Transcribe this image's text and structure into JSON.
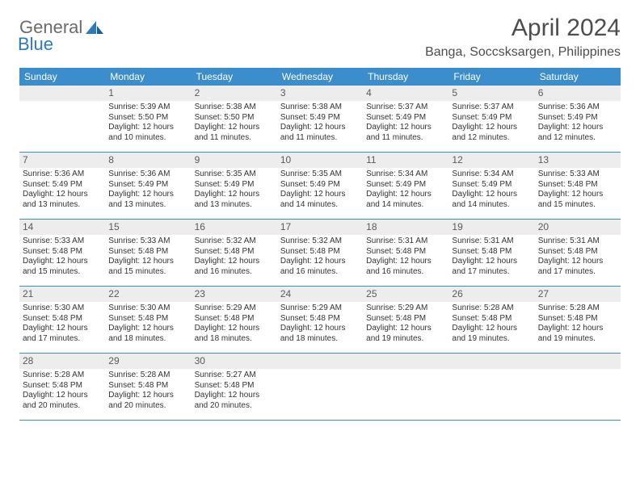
{
  "brand": {
    "part1": "General",
    "part2": "Blue"
  },
  "title": "April 2024",
  "location": "Banga, Soccsksargen, Philippines",
  "colors": {
    "header_bg": "#3c8dcc",
    "header_text": "#ffffff",
    "daynum_bg": "#ededed",
    "daynum_text": "#5a5a5a",
    "body_text": "#333333",
    "rule": "#3c8dcc",
    "brand_gray": "#6b6b6b",
    "brand_blue": "#2b7bbf"
  },
  "day_labels": [
    "Sunday",
    "Monday",
    "Tuesday",
    "Wednesday",
    "Thursday",
    "Friday",
    "Saturday"
  ],
  "weeks": [
    [
      {
        "n": "",
        "sr": "",
        "ss": "",
        "dl": ""
      },
      {
        "n": "1",
        "sr": "Sunrise: 5:39 AM",
        "ss": "Sunset: 5:50 PM",
        "dl": "Daylight: 12 hours and 10 minutes."
      },
      {
        "n": "2",
        "sr": "Sunrise: 5:38 AM",
        "ss": "Sunset: 5:50 PM",
        "dl": "Daylight: 12 hours and 11 minutes."
      },
      {
        "n": "3",
        "sr": "Sunrise: 5:38 AM",
        "ss": "Sunset: 5:49 PM",
        "dl": "Daylight: 12 hours and 11 minutes."
      },
      {
        "n": "4",
        "sr": "Sunrise: 5:37 AM",
        "ss": "Sunset: 5:49 PM",
        "dl": "Daylight: 12 hours and 11 minutes."
      },
      {
        "n": "5",
        "sr": "Sunrise: 5:37 AM",
        "ss": "Sunset: 5:49 PM",
        "dl": "Daylight: 12 hours and 12 minutes."
      },
      {
        "n": "6",
        "sr": "Sunrise: 5:36 AM",
        "ss": "Sunset: 5:49 PM",
        "dl": "Daylight: 12 hours and 12 minutes."
      }
    ],
    [
      {
        "n": "7",
        "sr": "Sunrise: 5:36 AM",
        "ss": "Sunset: 5:49 PM",
        "dl": "Daylight: 12 hours and 13 minutes."
      },
      {
        "n": "8",
        "sr": "Sunrise: 5:36 AM",
        "ss": "Sunset: 5:49 PM",
        "dl": "Daylight: 12 hours and 13 minutes."
      },
      {
        "n": "9",
        "sr": "Sunrise: 5:35 AM",
        "ss": "Sunset: 5:49 PM",
        "dl": "Daylight: 12 hours and 13 minutes."
      },
      {
        "n": "10",
        "sr": "Sunrise: 5:35 AM",
        "ss": "Sunset: 5:49 PM",
        "dl": "Daylight: 12 hours and 14 minutes."
      },
      {
        "n": "11",
        "sr": "Sunrise: 5:34 AM",
        "ss": "Sunset: 5:49 PM",
        "dl": "Daylight: 12 hours and 14 minutes."
      },
      {
        "n": "12",
        "sr": "Sunrise: 5:34 AM",
        "ss": "Sunset: 5:49 PM",
        "dl": "Daylight: 12 hours and 14 minutes."
      },
      {
        "n": "13",
        "sr": "Sunrise: 5:33 AM",
        "ss": "Sunset: 5:48 PM",
        "dl": "Daylight: 12 hours and 15 minutes."
      }
    ],
    [
      {
        "n": "14",
        "sr": "Sunrise: 5:33 AM",
        "ss": "Sunset: 5:48 PM",
        "dl": "Daylight: 12 hours and 15 minutes."
      },
      {
        "n": "15",
        "sr": "Sunrise: 5:33 AM",
        "ss": "Sunset: 5:48 PM",
        "dl": "Daylight: 12 hours and 15 minutes."
      },
      {
        "n": "16",
        "sr": "Sunrise: 5:32 AM",
        "ss": "Sunset: 5:48 PM",
        "dl": "Daylight: 12 hours and 16 minutes."
      },
      {
        "n": "17",
        "sr": "Sunrise: 5:32 AM",
        "ss": "Sunset: 5:48 PM",
        "dl": "Daylight: 12 hours and 16 minutes."
      },
      {
        "n": "18",
        "sr": "Sunrise: 5:31 AM",
        "ss": "Sunset: 5:48 PM",
        "dl": "Daylight: 12 hours and 16 minutes."
      },
      {
        "n": "19",
        "sr": "Sunrise: 5:31 AM",
        "ss": "Sunset: 5:48 PM",
        "dl": "Daylight: 12 hours and 17 minutes."
      },
      {
        "n": "20",
        "sr": "Sunrise: 5:31 AM",
        "ss": "Sunset: 5:48 PM",
        "dl": "Daylight: 12 hours and 17 minutes."
      }
    ],
    [
      {
        "n": "21",
        "sr": "Sunrise: 5:30 AM",
        "ss": "Sunset: 5:48 PM",
        "dl": "Daylight: 12 hours and 17 minutes."
      },
      {
        "n": "22",
        "sr": "Sunrise: 5:30 AM",
        "ss": "Sunset: 5:48 PM",
        "dl": "Daylight: 12 hours and 18 minutes."
      },
      {
        "n": "23",
        "sr": "Sunrise: 5:29 AM",
        "ss": "Sunset: 5:48 PM",
        "dl": "Daylight: 12 hours and 18 minutes."
      },
      {
        "n": "24",
        "sr": "Sunrise: 5:29 AM",
        "ss": "Sunset: 5:48 PM",
        "dl": "Daylight: 12 hours and 18 minutes."
      },
      {
        "n": "25",
        "sr": "Sunrise: 5:29 AM",
        "ss": "Sunset: 5:48 PM",
        "dl": "Daylight: 12 hours and 19 minutes."
      },
      {
        "n": "26",
        "sr": "Sunrise: 5:28 AM",
        "ss": "Sunset: 5:48 PM",
        "dl": "Daylight: 12 hours and 19 minutes."
      },
      {
        "n": "27",
        "sr": "Sunrise: 5:28 AM",
        "ss": "Sunset: 5:48 PM",
        "dl": "Daylight: 12 hours and 19 minutes."
      }
    ],
    [
      {
        "n": "28",
        "sr": "Sunrise: 5:28 AM",
        "ss": "Sunset: 5:48 PM",
        "dl": "Daylight: 12 hours and 20 minutes."
      },
      {
        "n": "29",
        "sr": "Sunrise: 5:28 AM",
        "ss": "Sunset: 5:48 PM",
        "dl": "Daylight: 12 hours and 20 minutes."
      },
      {
        "n": "30",
        "sr": "Sunrise: 5:27 AM",
        "ss": "Sunset: 5:48 PM",
        "dl": "Daylight: 12 hours and 20 minutes."
      },
      {
        "n": "",
        "sr": "",
        "ss": "",
        "dl": ""
      },
      {
        "n": "",
        "sr": "",
        "ss": "",
        "dl": ""
      },
      {
        "n": "",
        "sr": "",
        "ss": "",
        "dl": ""
      },
      {
        "n": "",
        "sr": "",
        "ss": "",
        "dl": ""
      }
    ]
  ]
}
